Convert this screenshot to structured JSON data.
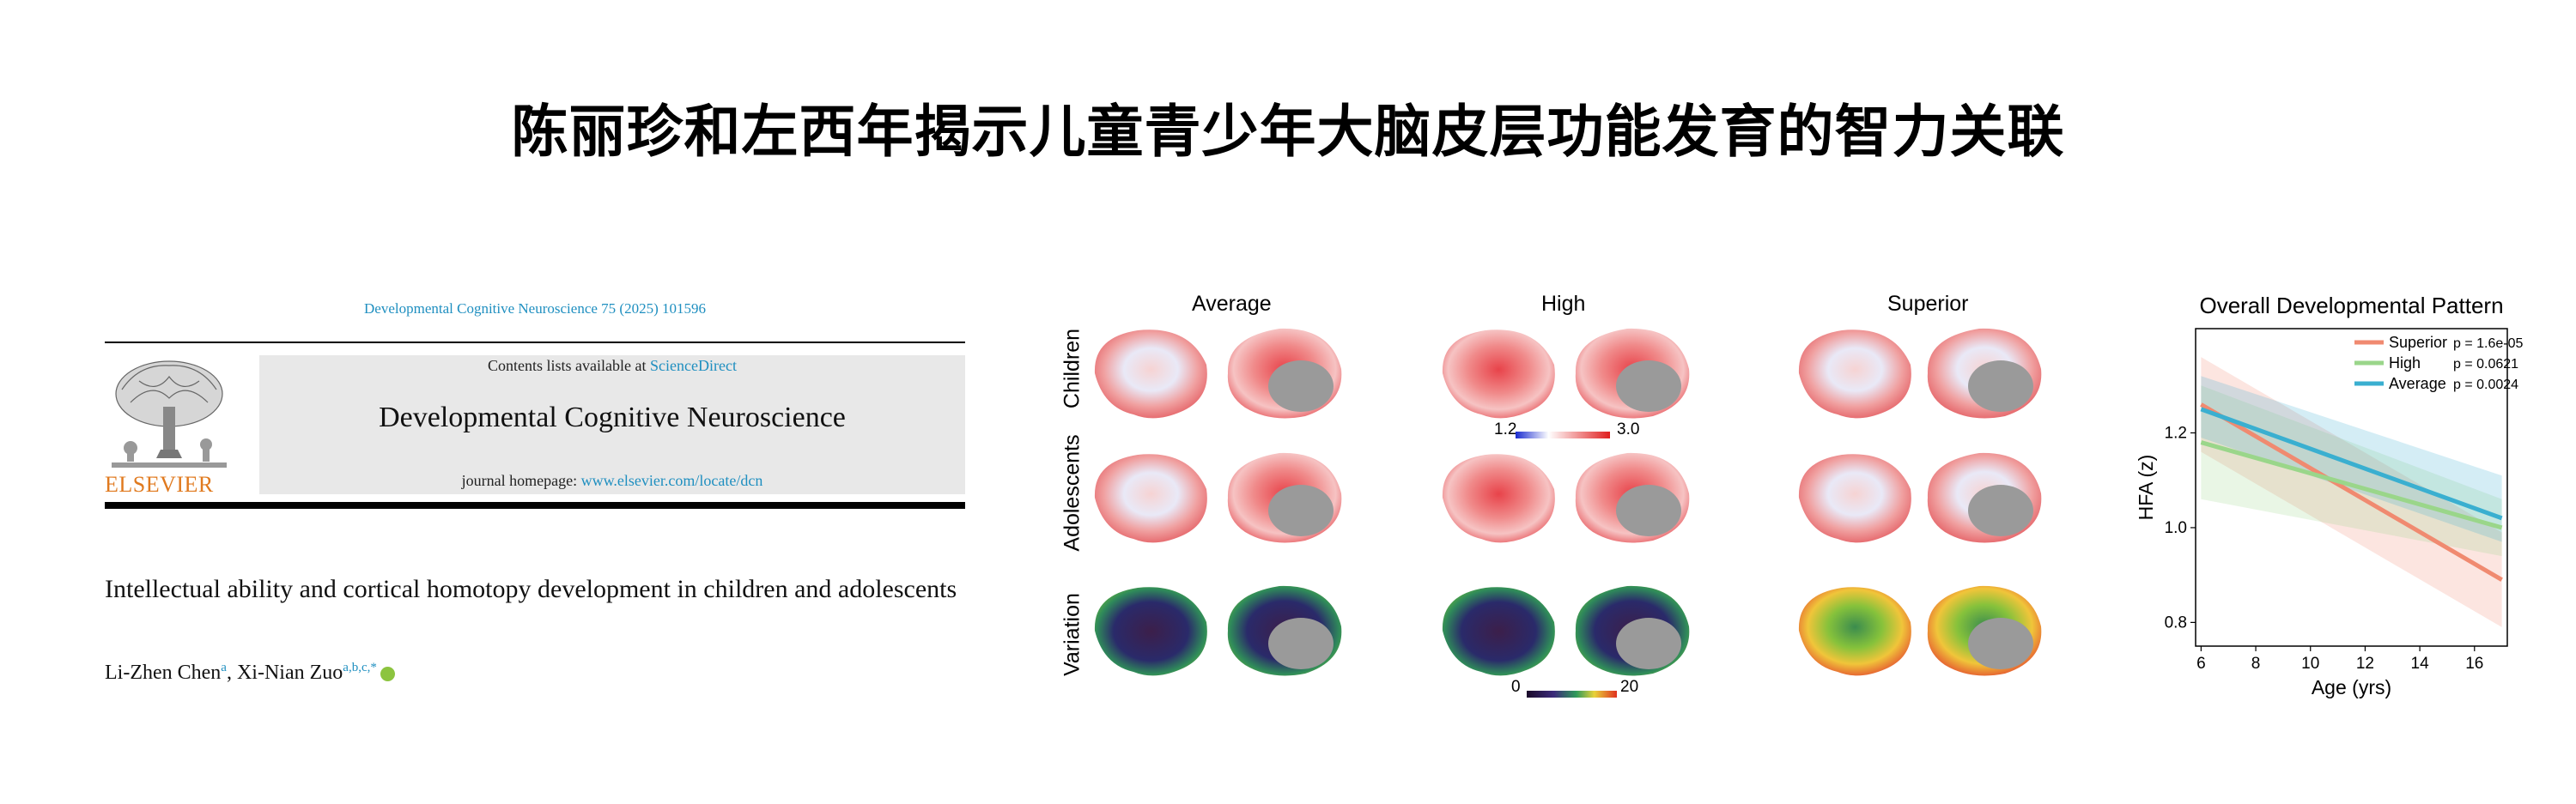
{
  "headline": "陈丽珍和左西年揭示儿童青少年大脑皮层功能发育的智力关联",
  "journal": {
    "citation": "Developmental Cognitive Neuroscience 75 (2025) 101596",
    "contents_prefix": "Contents lists available at ",
    "contents_link": "ScienceDirect",
    "name": "Developmental Cognitive Neuroscience",
    "homepage_prefix": "journal homepage: ",
    "homepage_link": "www.elsevier.com/locate/dcn",
    "publisher": "ELSEVIER",
    "article_title": "Intellectual ability and cortical homotopy development in children and adolescents",
    "author1": "Li-Zhen Chen",
    "author1_sup": "a",
    "author_sep": ", ",
    "author2": "Xi-Nian Zuo",
    "author2_sup": "a,b,c,*",
    "colors": {
      "link": "#1f8fc0",
      "publisher": "#e07a1f",
      "orcid": "#8cc43f"
    }
  },
  "brain_figure": {
    "columns": [
      "Average",
      "High",
      "Superior"
    ],
    "rows": [
      "Children",
      "Adolescents",
      "Variation"
    ],
    "colorbar_hfa": {
      "min": "1.2",
      "max": "3.0"
    },
    "colorbar_var": {
      "min": "0",
      "max": "20"
    }
  },
  "chart_data": {
    "type": "line",
    "title": "Overall Developmental Pattern",
    "xlabel": "Age (yrs)",
    "ylabel": "HFA (z)",
    "xlim": [
      5.8,
      17.2
    ],
    "ylim": [
      0.75,
      1.42
    ],
    "xticks": [
      "6",
      "8",
      "10",
      "12",
      "14",
      "16"
    ],
    "yticks": [
      "0.8",
      "1.0",
      "1.2"
    ],
    "legend_position": "top-right",
    "series": [
      {
        "name": "Superior",
        "p": "p = 1.6e-05",
        "color": "#f08a70",
        "x": [
          6,
          17
        ],
        "y": [
          1.26,
          0.89
        ],
        "ci_low": [
          1.16,
          0.79
        ],
        "ci_high": [
          1.36,
          0.99
        ]
      },
      {
        "name": "High",
        "p": "p = 0.0621",
        "color": "#9ad68a",
        "x": [
          6,
          17
        ],
        "y": [
          1.18,
          1.0
        ],
        "ci_low": [
          1.06,
          0.94
        ],
        "ci_high": [
          1.3,
          1.06
        ]
      },
      {
        "name": "Average",
        "p": "p = 0.0024",
        "color": "#3aafd0",
        "x": [
          6,
          17
        ],
        "y": [
          1.25,
          1.02
        ],
        "ci_low": [
          1.19,
          0.97
        ],
        "ci_high": [
          1.32,
          1.11
        ]
      }
    ]
  }
}
